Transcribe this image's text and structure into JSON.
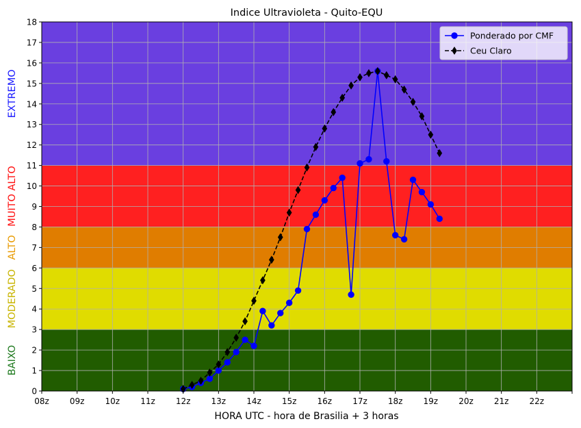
{
  "chart_data": {
    "type": "line",
    "title": "Indice Ultravioleta - Quito-EQU",
    "xlabel": "HORA UTC - hora de Brasilia + 3 horas",
    "ylabel": "",
    "xlim": [
      8,
      23
    ],
    "ylim": [
      0,
      18
    ],
    "grid": true,
    "legend_position": "top-right",
    "x_ticks": [
      8,
      9,
      10,
      11,
      12,
      13,
      14,
      15,
      16,
      17,
      18,
      19,
      20,
      21,
      22,
      23
    ],
    "x_tick_labels": [
      "08z",
      "09z",
      "10z",
      "11z",
      "12z",
      "13z",
      "14z",
      "15z",
      "16z",
      "17z",
      "18z",
      "19z",
      "20z",
      "21z",
      "22z",
      ""
    ],
    "y_ticks": [
      0,
      1,
      2,
      3,
      4,
      5,
      6,
      7,
      8,
      9,
      10,
      11,
      12,
      13,
      14,
      15,
      16,
      17,
      18
    ],
    "bands": [
      {
        "label": "BAIXO",
        "from": 0,
        "to": 3,
        "fill": "#215c00",
        "label_color": "#1f7a1f"
      },
      {
        "label": "MODERADO",
        "from": 3,
        "to": 6,
        "fill": "#e0dc00",
        "label_color": "#c8b400"
      },
      {
        "label": "ALTO",
        "from": 6,
        "to": 8,
        "fill": "#e07d00",
        "label_color": "#e89a00"
      },
      {
        "label": "MUITO ALTO",
        "from": 8,
        "to": 11,
        "fill": "#ff2020",
        "label_color": "#ff1010"
      },
      {
        "label": "EXTREMO",
        "from": 11,
        "to": 18,
        "fill": "#6a3fe0",
        "label_color": "#1a1aff"
      }
    ],
    "series": [
      {
        "name": "Ponderado por CMF",
        "color": "#0000ff",
        "marker": "circle",
        "dash": "solid",
        "x": [
          12.0,
          12.25,
          12.5,
          12.75,
          13.0,
          13.25,
          13.5,
          13.75,
          14.0,
          14.25,
          14.5,
          14.75,
          15.0,
          15.25,
          15.5,
          15.75,
          16.0,
          16.25,
          16.5,
          16.75,
          17.0,
          17.25,
          17.5,
          17.75,
          18.0,
          18.25,
          18.5,
          18.75,
          19.0,
          19.25
        ],
        "y": [
          0.1,
          0.2,
          0.4,
          0.6,
          1.0,
          1.4,
          1.9,
          2.5,
          2.2,
          3.9,
          3.2,
          3.8,
          4.3,
          4.9,
          7.9,
          8.6,
          9.3,
          9.9,
          10.4,
          4.7,
          11.1,
          11.3,
          15.6,
          11.2,
          7.6,
          7.4,
          10.3,
          9.7,
          9.1,
          8.4
        ]
      },
      {
        "name": "Ceu Claro",
        "color": "#000000",
        "marker": "diamond",
        "dash": "dashed",
        "x": [
          12.0,
          12.25,
          12.5,
          12.75,
          13.0,
          13.25,
          13.5,
          13.75,
          14.0,
          14.25,
          14.5,
          14.75,
          15.0,
          15.25,
          15.5,
          15.75,
          16.0,
          16.25,
          16.5,
          16.75,
          17.0,
          17.25,
          17.5,
          17.75,
          18.0,
          18.25,
          18.5,
          18.75,
          19.0,
          19.25
        ],
        "y": [
          0.1,
          0.3,
          0.5,
          0.9,
          1.3,
          1.9,
          2.6,
          3.4,
          4.4,
          5.4,
          6.4,
          7.5,
          8.7,
          9.8,
          10.9,
          11.9,
          12.8,
          13.6,
          14.3,
          14.9,
          15.3,
          15.5,
          15.6,
          15.4,
          15.2,
          14.7,
          14.1,
          13.4,
          12.5,
          11.6
        ]
      }
    ]
  }
}
